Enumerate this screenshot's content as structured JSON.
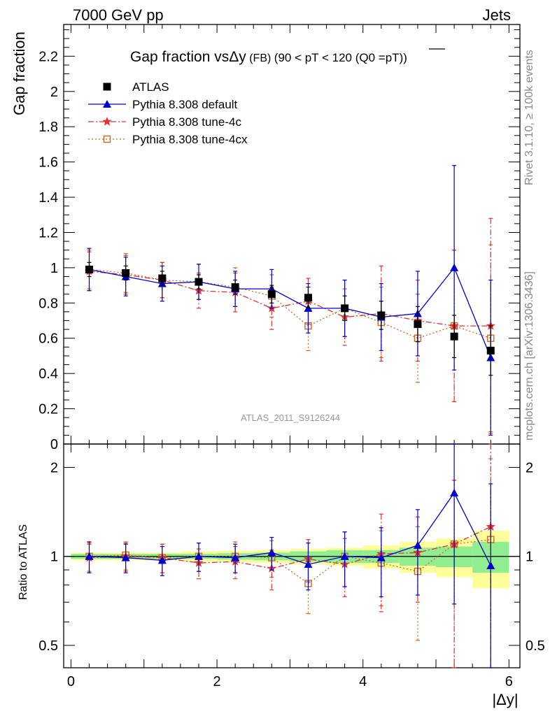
{
  "header": {
    "energy_label": "7000 GeV pp",
    "process_label": "Jets"
  },
  "side_labels": {
    "rivet": "Rivet 3.1.10, ≥ 100k events",
    "mcplots": "mcplots.cern.ch [arXiv:1306.3436]"
  },
  "watermark": "ATLAS_2011_S9126244",
  "chart_data": [
    {
      "type": "scatter",
      "title": "Gap fraction vs Δy (FB) (90 < pT < 120 (Q0 = pT))",
      "title_parts": {
        "main": "Gap fraction vs",
        "symbol": "Δy",
        "tag": "(FB)",
        "range": "(90 < pT < 120 (Q0 =",
        "overline": "pT",
        "close": "))"
      },
      "ylabel": "Gap fraction",
      "ylim": [
        0,
        2.38
      ],
      "y_ticks": [
        "0",
        "0.2",
        "0.4",
        "0.6",
        "0.8",
        "1",
        "1.2",
        "1.4",
        "1.6",
        "1.8",
        "2",
        "2.2"
      ],
      "y_tick_values": [
        0,
        0.2,
        0.4,
        0.6,
        0.8,
        1.0,
        1.2,
        1.4,
        1.6,
        1.8,
        2.0,
        2.2
      ],
      "xlim": [
        -0.1,
        6.15
      ],
      "x": [
        0.25,
        0.75,
        1.25,
        1.75,
        2.25,
        2.75,
        3.25,
        3.75,
        4.25,
        4.75,
        5.25,
        5.75
      ],
      "legend_placement": "top-left",
      "series": [
        {
          "name": "ATLAS",
          "color": "#000000",
          "marker": "square-filled",
          "values": [
            0.99,
            0.97,
            0.94,
            0.92,
            0.89,
            0.85,
            0.83,
            0.77,
            0.73,
            0.68,
            0.61,
            0.53
          ],
          "errors": [
            0.04,
            0.04,
            0.04,
            0.04,
            0.04,
            0.05,
            0.06,
            0.07,
            0.08,
            0.1,
            0.12,
            0.14
          ]
        },
        {
          "name": "Pythia 8.308 default",
          "color": "#0000cc",
          "marker": "triangle-filled",
          "line": "solid",
          "values": [
            0.99,
            0.95,
            0.91,
            0.92,
            0.88,
            0.88,
            0.77,
            0.77,
            0.72,
            0.74,
            1.0,
            0.49
          ],
          "errors": [
            0.12,
            0.11,
            0.1,
            0.1,
            0.1,
            0.11,
            0.14,
            0.16,
            0.19,
            0.24,
            0.58,
            0.44
          ]
        },
        {
          "name": "Pythia 8.308 tune-4c",
          "color": "#dd3333",
          "marker": "star",
          "line": "dashdot",
          "values": [
            0.98,
            0.96,
            0.93,
            0.87,
            0.86,
            0.77,
            0.81,
            0.72,
            0.74,
            0.7,
            0.67,
            0.67
          ],
          "errors": [
            0.11,
            0.11,
            0.1,
            0.1,
            0.11,
            0.12,
            0.13,
            0.16,
            0.27,
            0.23,
            0.43,
            0.61
          ]
        },
        {
          "name": "Pythia 8.308 tune-4cx",
          "color": "#cc6622",
          "marker": "square-open",
          "line": "dotted",
          "values": [
            0.99,
            0.97,
            0.93,
            0.92,
            0.89,
            0.84,
            0.67,
            0.77,
            0.69,
            0.6,
            0.67,
            0.6
          ],
          "errors": [
            0.11,
            0.11,
            0.1,
            0.1,
            0.11,
            0.12,
            0.14,
            0.16,
            0.2,
            0.25,
            0.43,
            0.53
          ]
        }
      ]
    },
    {
      "type": "scatter",
      "title": "",
      "xlabel": "|Δy|",
      "ylabel": "Ratio to ATLAS",
      "y_scale": "log",
      "ylim": [
        0.42,
        2.4
      ],
      "y_ticks": [
        "0.5",
        "1",
        "2"
      ],
      "y_tick_values": [
        0.5,
        1,
        2
      ],
      "x_ticks": [
        "0",
        "2",
        "4",
        "6"
      ],
      "x_tick_values": [
        0,
        2,
        4,
        6
      ],
      "xlim": [
        -0.1,
        6.15
      ],
      "x": [
        0.25,
        0.75,
        1.25,
        1.75,
        2.25,
        2.75,
        3.25,
        3.75,
        4.25,
        4.75,
        5.25,
        5.75
      ],
      "bands": {
        "bin_edges": [
          0,
          0.5,
          1.0,
          1.5,
          2.0,
          2.5,
          3.0,
          3.5,
          4.0,
          4.5,
          5.0,
          5.5,
          6.0
        ],
        "green_halfwidth": [
          0.02,
          0.02,
          0.02,
          0.02,
          0.025,
          0.03,
          0.04,
          0.05,
          0.05,
          0.07,
          0.08,
          0.12
        ],
        "yellow_halfwidth": [
          0.03,
          0.03,
          0.03,
          0.04,
          0.045,
          0.05,
          0.06,
          0.07,
          0.09,
          0.12,
          0.15,
          0.22
        ],
        "green_color": "#90ee90",
        "yellow_color": "#ffff99"
      },
      "series": [
        {
          "name": "Pythia 8.308 default",
          "color": "#0000cc",
          "marker": "triangle-filled",
          "line": "solid",
          "values": [
            1.0,
            0.99,
            0.97,
            1.0,
            0.99,
            1.03,
            0.94,
            1.0,
            0.99,
            1.09,
            1.64,
            0.93
          ],
          "errors": [
            0.12,
            0.11,
            0.11,
            0.11,
            0.11,
            0.13,
            0.17,
            0.21,
            0.26,
            0.35,
            0.95,
            0.83
          ]
        },
        {
          "name": "Pythia 8.308 tune-4c",
          "color": "#dd3333",
          "marker": "star",
          "line": "dashdot",
          "values": [
            0.99,
            1.0,
            0.99,
            0.95,
            0.96,
            0.91,
            0.98,
            0.94,
            1.02,
            1.03,
            1.1,
            1.26
          ],
          "errors": [
            0.11,
            0.11,
            0.11,
            0.11,
            0.12,
            0.14,
            0.16,
            0.21,
            0.37,
            0.33,
            0.71,
            1.15
          ]
        },
        {
          "name": "Pythia 8.308 tune-4cx",
          "color": "#cc6622",
          "marker": "square-open",
          "line": "dotted",
          "values": [
            1.0,
            1.01,
            0.99,
            1.0,
            1.0,
            0.99,
            0.81,
            1.0,
            0.95,
            0.89,
            1.1,
            1.14
          ],
          "errors": [
            0.11,
            0.11,
            0.11,
            0.11,
            0.12,
            0.14,
            0.17,
            0.21,
            0.27,
            0.37,
            0.71,
            1.0
          ]
        }
      ]
    }
  ]
}
